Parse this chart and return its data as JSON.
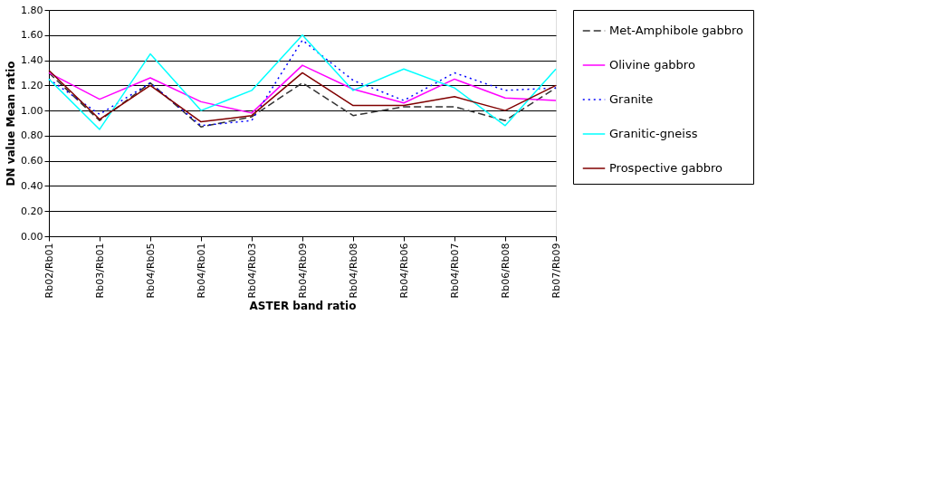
{
  "chart_data": {
    "type": "line",
    "xlabel": "ASTER band ratio",
    "ylabel": "DN value Mean ratio",
    "categories": [
      "Rb02/Rb01",
      "Rb03/Rb01",
      "Rb04/Rb05",
      "Rb04/Rb01",
      "Rb04/Rb03",
      "Rb04/Rb09",
      "Rb04/Rb08",
      "Rb04/Rb06",
      "Rb04/Rb07",
      "Rb06/Rb08",
      "Rb07/Rb09"
    ],
    "ylim": [
      0,
      1.8
    ],
    "yticks": [
      {
        "value": 0,
        "label": "0.00"
      },
      {
        "value": 0.2,
        "label": "0.20"
      },
      {
        "value": 0.4,
        "label": "0.40"
      },
      {
        "value": 0.6,
        "label": "0.60"
      },
      {
        "value": 0.8,
        "label": "0.80"
      },
      {
        "value": 1.0,
        "label": "1.00"
      },
      {
        "value": 1.2,
        "label": "1.20"
      },
      {
        "value": 1.4,
        "label": "1.40"
      },
      {
        "value": 1.6,
        "label": "1.60"
      },
      {
        "value": 1.8,
        "label": "1.80"
      }
    ],
    "grid": "y",
    "legend": "right",
    "marker": "none",
    "series": [
      {
        "name": "Met-Amphibole gabbro",
        "color": "#333333",
        "line_style": "dashed",
        "values": [
          1.3,
          0.92,
          1.22,
          0.87,
          0.95,
          1.22,
          0.96,
          1.03,
          1.03,
          0.92,
          1.18
        ]
      },
      {
        "name": "Olivine gabbro",
        "color": "#ff00ff",
        "line_style": "solid",
        "values": [
          1.3,
          1.09,
          1.26,
          1.07,
          0.98,
          1.36,
          1.17,
          1.06,
          1.25,
          1.1,
          1.08
        ]
      },
      {
        "name": "Granite",
        "color": "#0000ff",
        "line_style": "dotted",
        "values": [
          1.25,
          0.97,
          1.22,
          0.88,
          0.92,
          1.56,
          1.24,
          1.08,
          1.3,
          1.16,
          1.18
        ]
      },
      {
        "name": "Granitic-gneiss",
        "color": "#00ffff",
        "line_style": "solid",
        "values": [
          1.25,
          0.85,
          1.45,
          1.0,
          1.16,
          1.6,
          1.16,
          1.33,
          1.18,
          0.88,
          1.33
        ]
      },
      {
        "name": "Prospective gabbro",
        "color": "#800000",
        "line_style": "solid",
        "values": [
          1.32,
          0.93,
          1.2,
          0.91,
          0.96,
          1.3,
          1.04,
          1.04,
          1.11,
          1.0,
          1.2
        ]
      }
    ]
  }
}
